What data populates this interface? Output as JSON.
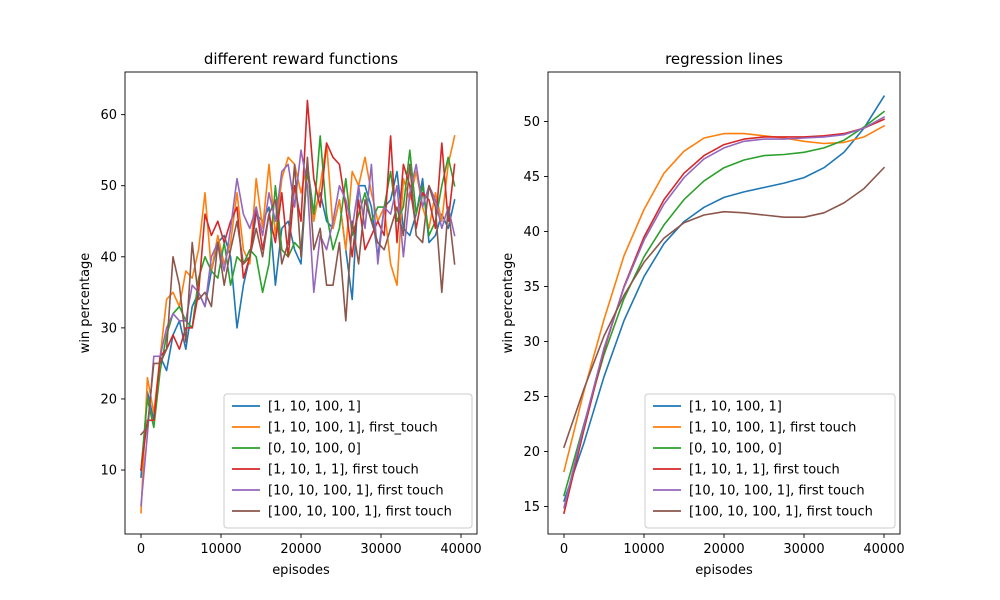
{
  "chart_data": [
    {
      "type": "line",
      "title": "different reward functions",
      "xlabel": "episodes",
      "ylabel": "win percentage",
      "xlim": [
        -2000,
        42000
      ],
      "ylim": [
        1,
        66
      ],
      "xticks": [
        0,
        10000,
        20000,
        30000,
        40000
      ],
      "yticks": [
        10,
        20,
        30,
        40,
        50,
        60
      ],
      "legend_position": "lower-right",
      "x": [
        0,
        800,
        1600,
        2400,
        3200,
        4000,
        4800,
        5600,
        6400,
        7200,
        8000,
        8800,
        9600,
        10400,
        11200,
        12000,
        12800,
        13600,
        14400,
        15200,
        16000,
        16800,
        17600,
        18400,
        19200,
        20000,
        20800,
        21600,
        22400,
        23200,
        24000,
        24800,
        25600,
        26400,
        27200,
        28000,
        28800,
        29600,
        30400,
        31200,
        32000,
        32800,
        33600,
        34400,
        35200,
        36000,
        36800,
        37600,
        38400,
        39200
      ],
      "series": [
        {
          "name": "[1, 10, 100, 1]",
          "color": "#1f77b4",
          "values": [
            9,
            21,
            17,
            26,
            24,
            29,
            31,
            27,
            33,
            35,
            33,
            38,
            42,
            43,
            40,
            30,
            36,
            40,
            46,
            45,
            47,
            36,
            44,
            45,
            41,
            39,
            53,
            46,
            49,
            45,
            44,
            48,
            41,
            34,
            50,
            50,
            47,
            40,
            47,
            48,
            52,
            44,
            43,
            46,
            51,
            42,
            43,
            46,
            44,
            48
          ]
        },
        {
          "name": "[1, 10, 100, 1], first_touch",
          "color": "#ff7f0e",
          "values": [
            4,
            23,
            18,
            26,
            34,
            35,
            33,
            38,
            37,
            41,
            49,
            38,
            43,
            39,
            42,
            49,
            41,
            39,
            51,
            44,
            53,
            43,
            51,
            54,
            53,
            49,
            53,
            45,
            50,
            56,
            44,
            48,
            41,
            52,
            50,
            54,
            49,
            45,
            47,
            39,
            36,
            51,
            48,
            52,
            47,
            44,
            49,
            45,
            53,
            57
          ]
        },
        {
          "name": "[0, 10, 100, 0]",
          "color": "#2ca02c",
          "values": [
            10,
            20,
            16,
            24,
            29,
            32,
            33,
            31,
            30,
            37,
            40,
            38,
            37,
            42,
            36,
            40,
            39,
            41,
            40,
            35,
            39,
            50,
            41,
            40,
            42,
            41,
            52,
            46,
            57,
            46,
            41,
            44,
            51,
            43,
            46,
            49,
            45,
            47,
            47,
            52,
            45,
            47,
            55,
            46,
            50,
            43,
            45,
            50,
            54,
            50
          ]
        },
        {
          "name": "[1, 10, 1, 1], first touch",
          "color": "#d62728",
          "values": [
            10,
            17,
            17,
            26,
            27,
            29,
            27,
            30,
            30,
            35,
            46,
            43,
            45,
            42,
            45,
            47,
            37,
            40,
            47,
            41,
            46,
            42,
            49,
            40,
            50,
            45,
            62,
            51,
            47,
            56,
            54,
            53,
            47,
            40,
            48,
            41,
            43,
            45,
            43,
            57,
            42,
            53,
            50,
            44,
            49,
            48,
            44,
            56,
            45,
            53
          ]
        },
        {
          "name": "[10, 10, 100, 1], first touch",
          "color": "#9467bd",
          "values": [
            5,
            15,
            26,
            26,
            30,
            32,
            31,
            31,
            36,
            35,
            33,
            40,
            42,
            38,
            44,
            51,
            46,
            44,
            47,
            43,
            49,
            45,
            52,
            53,
            47,
            55,
            50,
            35,
            43,
            41,
            45,
            50,
            48,
            44,
            50,
            44,
            53,
            39,
            47,
            46,
            50,
            40,
            49,
            53,
            47,
            50,
            48,
            44,
            47,
            43
          ]
        },
        {
          "name": "[100, 10, 100, 1], first touch",
          "color": "#8c564b",
          "values": [
            15,
            16,
            25,
            25,
            27,
            40,
            36,
            28,
            42,
            34,
            35,
            33,
            42,
            36,
            41,
            45,
            39,
            40,
            44,
            40,
            46,
            48,
            39,
            42,
            53,
            40,
            54,
            41,
            44,
            36,
            36,
            42,
            31,
            45,
            39,
            48,
            45,
            42,
            41,
            44,
            47,
            43,
            53,
            43,
            42,
            50,
            47,
            35,
            47,
            39
          ]
        }
      ]
    },
    {
      "type": "line",
      "title": "regression lines",
      "xlabel": "episodes",
      "ylabel": "win percentage",
      "xlim": [
        -2000,
        42000
      ],
      "ylim": [
        12.5,
        54.5
      ],
      "xticks": [
        0,
        10000,
        20000,
        30000,
        40000
      ],
      "yticks": [
        15,
        20,
        25,
        30,
        35,
        40,
        45,
        50
      ],
      "legend_position": "lower-right",
      "x": [
        0,
        2500,
        5000,
        7500,
        10000,
        12500,
        15000,
        17500,
        20000,
        22500,
        25000,
        27500,
        30000,
        32500,
        35000,
        37500,
        40000
      ],
      "series": [
        {
          "name": "[1, 10, 100, 1]",
          "color": "#1f77b4",
          "values": [
            15.5,
            20.8,
            26.8,
            31.9,
            35.9,
            38.9,
            40.9,
            42.2,
            43.1,
            43.6,
            44.0,
            44.4,
            44.9,
            45.8,
            47.2,
            49.4,
            52.3
          ]
        },
        {
          "name": "[1, 10, 100, 1], first touch",
          "color": "#ff7f0e",
          "values": [
            18.2,
            25.5,
            32.0,
            37.8,
            42.0,
            45.3,
            47.3,
            48.5,
            48.9,
            48.9,
            48.7,
            48.5,
            48.2,
            48.0,
            48.1,
            48.6,
            49.6
          ]
        },
        {
          "name": "[0, 10, 100, 0]",
          "color": "#2ca02c",
          "values": [
            16.0,
            22.5,
            28.8,
            33.9,
            37.7,
            40.6,
            42.9,
            44.6,
            45.8,
            46.5,
            46.9,
            47.0,
            47.2,
            47.6,
            48.3,
            49.5,
            50.9
          ]
        },
        {
          "name": "[1, 10, 1, 1], first touch",
          "color": "#d62728",
          "values": [
            14.4,
            22.0,
            29.2,
            35.0,
            39.5,
            42.9,
            45.3,
            46.9,
            47.9,
            48.4,
            48.6,
            48.6,
            48.6,
            48.7,
            48.9,
            49.4,
            50.2
          ]
        },
        {
          "name": "[10, 10, 100, 1], first touch",
          "color": "#9467bd",
          "values": [
            14.9,
            22.4,
            29.4,
            34.9,
            39.2,
            42.5,
            44.9,
            46.6,
            47.6,
            48.2,
            48.4,
            48.4,
            48.5,
            48.6,
            48.8,
            49.4,
            50.4
          ]
        },
        {
          "name": "[100, 10, 100, 1], first touch",
          "color": "#8c564b",
          "values": [
            20.4,
            25.7,
            30.5,
            34.2,
            37.2,
            39.4,
            40.8,
            41.5,
            41.8,
            41.7,
            41.5,
            41.3,
            41.3,
            41.7,
            42.6,
            43.9,
            45.8
          ]
        }
      ]
    }
  ]
}
